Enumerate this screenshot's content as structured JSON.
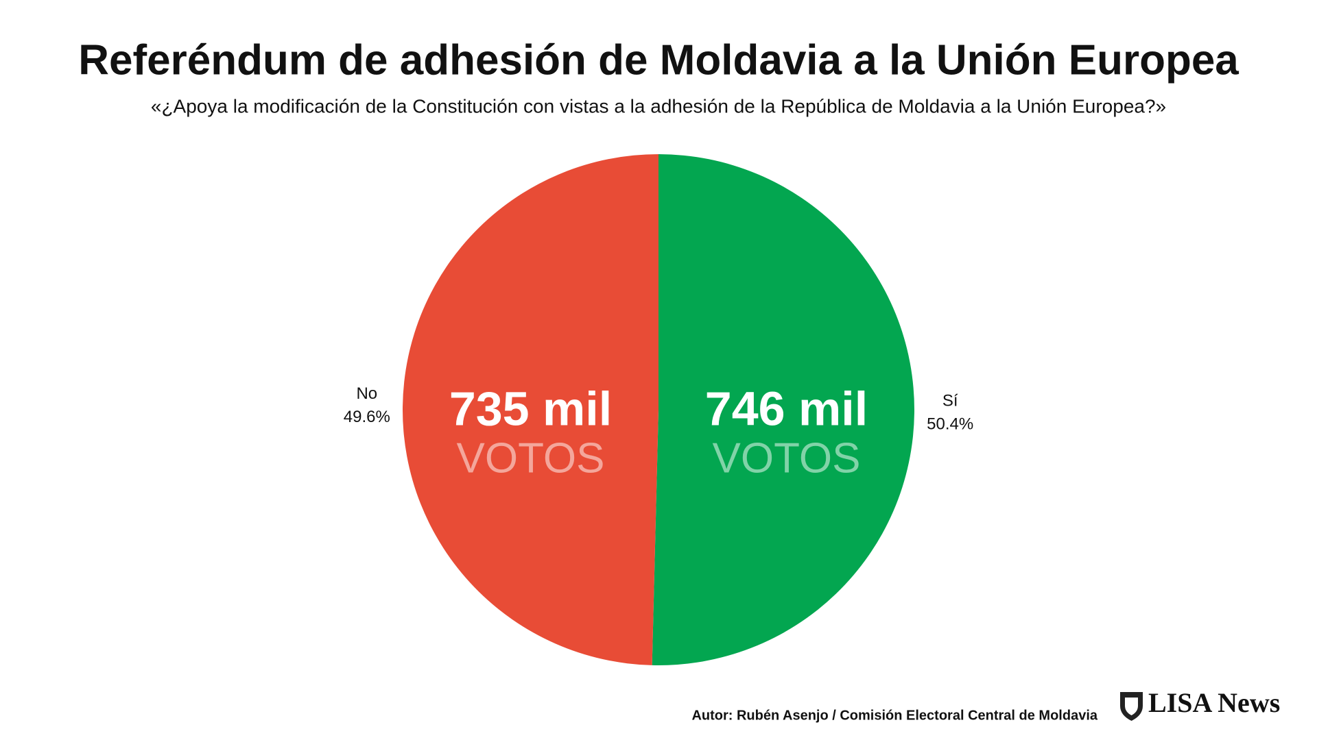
{
  "chart_data": {
    "type": "pie",
    "title": "Referéndum de adhesión de Moldavia a la Unión Europea",
    "subtitle": "«¿Apoya la modificación de la Constitución con vistas a la adhesión de la República de Moldavia a la Unión Europea?»",
    "categories": [
      "Sí",
      "No"
    ],
    "values": [
      50.4,
      49.6
    ],
    "value_labels": [
      "50.4%",
      "49.6%"
    ],
    "colors": [
      "#03a650",
      "#e84c36"
    ],
    "vote_labels": [
      "746 mil",
      "735 mil"
    ],
    "vote_unit": "VOTOS",
    "source": "Autor: Rubén Asenjo / Comisión Electoral Central de Moldavia",
    "brand": "LISA News"
  }
}
